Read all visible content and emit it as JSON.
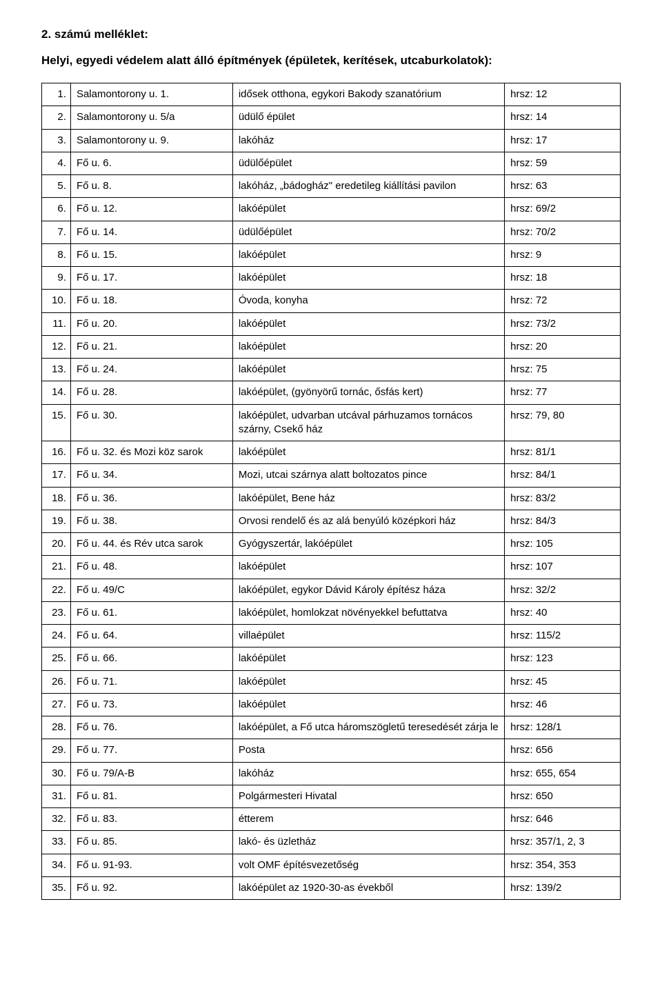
{
  "title": "2. számú melléklet:",
  "subtitle": "Helyi, egyedi védelem alatt álló építmények (épületek, kerítések, utcaburkolatok):",
  "table": {
    "rows": [
      {
        "n": "1.",
        "a": "Salamontorony u. 1.",
        "d": "idősek otthona, egykori Bakody szanatórium",
        "h": "hrsz: 12"
      },
      {
        "n": "2.",
        "a": "Salamontorony u. 5/a",
        "d": "üdülő épület",
        "h": "hrsz: 14"
      },
      {
        "n": "3.",
        "a": "Salamontorony u. 9.",
        "d": "lakóház",
        "h": "hrsz: 17"
      },
      {
        "n": "4.",
        "a": "Fő u. 6.",
        "d": "üdülőépület",
        "h": "hrsz: 59"
      },
      {
        "n": "5.",
        "a": "Fő u. 8.",
        "d": "lakóház, „bádogház\" eredetileg kiállítási pavilon",
        "h": "hrsz: 63"
      },
      {
        "n": "6.",
        "a": "Fő u. 12.",
        "d": "lakóépület",
        "h": "hrsz: 69/2"
      },
      {
        "n": "7.",
        "a": "Fő u. 14.",
        "d": "üdülőépület",
        "h": "hrsz: 70/2"
      },
      {
        "n": "8.",
        "a": "Fő u. 15.",
        "d": "lakóépület",
        "h": "hrsz: 9"
      },
      {
        "n": "9.",
        "a": "Fő u. 17.",
        "d": "lakóépület",
        "h": "hrsz: 18"
      },
      {
        "n": "10.",
        "a": "Fő u. 18.",
        "d": "Óvoda, konyha",
        "h": "hrsz: 72"
      },
      {
        "n": "11.",
        "a": "Fő u. 20.",
        "d": "lakóépület",
        "h": "hrsz: 73/2"
      },
      {
        "n": "12.",
        "a": "Fő u. 21.",
        "d": "lakóépület",
        "h": "hrsz: 20"
      },
      {
        "n": "13.",
        "a": "Fő u. 24.",
        "d": "lakóépület",
        "h": "hrsz: 75"
      },
      {
        "n": "14.",
        "a": "Fő u. 28.",
        "d": "lakóépület, (gyönyörű tornác, ősfás kert)",
        "h": "hrsz: 77"
      },
      {
        "n": "15.",
        "a": "Fő u. 30.",
        "d": "lakóépület, udvarban utcával párhuzamos tornácos szárny, Csekő ház",
        "h": "hrsz: 79, 80"
      },
      {
        "n": "16.",
        "a": "Fő u. 32. és Mozi köz sarok",
        "d": "lakóépület",
        "h": "hrsz: 81/1"
      },
      {
        "n": "17.",
        "a": "Fő u. 34.",
        "d": "Mozi, utcai szárnya alatt boltozatos pince",
        "h": "hrsz: 84/1"
      },
      {
        "n": "18.",
        "a": "Fő u. 36.",
        "d": "lakóépület, Bene ház",
        "h": "hrsz: 83/2"
      },
      {
        "n": "19.",
        "a": "Fő u. 38.",
        "d": "Orvosi rendelő és az alá benyúló középkori ház",
        "h": "hrsz: 84/3"
      },
      {
        "n": "20.",
        "a": "Fő u. 44. és Rév utca sarok",
        "d": "Gyógyszertár, lakóépület",
        "h": "hrsz: 105"
      },
      {
        "n": "21.",
        "a": "Fő u. 48.",
        "d": "lakóépület",
        "h": "hrsz: 107"
      },
      {
        "n": "22.",
        "a": "Fő u. 49/C",
        "d": "lakóépület, egykor Dávid Károly építész háza",
        "h": "hrsz: 32/2"
      },
      {
        "n": "23.",
        "a": "Fő u. 61.",
        "d": "lakóépület, homlokzat növényekkel befuttatva",
        "h": "hrsz: 40"
      },
      {
        "n": "24.",
        "a": "Fő u. 64.",
        "d": "villaépület",
        "h": "hrsz: 115/2"
      },
      {
        "n": "25.",
        "a": "Fő u. 66.",
        "d": "lakóépület",
        "h": "hrsz: 123"
      },
      {
        "n": "26.",
        "a": "Fő u. 71.",
        "d": "lakóépület",
        "h": "hrsz: 45"
      },
      {
        "n": "27.",
        "a": "Fő u. 73.",
        "d": "lakóépület",
        "h": "hrsz: 46"
      },
      {
        "n": "28.",
        "a": "Fő u. 76.",
        "d": "lakóépület, a Fő utca háromszögletű teresedését zárja le",
        "h": "hrsz: 128/1"
      },
      {
        "n": "29.",
        "a": "Fő u. 77.",
        "d": "Posta",
        "h": "hrsz: 656"
      },
      {
        "n": "30.",
        "a": "Fő u. 79/A-B",
        "d": "lakóház",
        "h": "hrsz: 655, 654"
      },
      {
        "n": "31.",
        "a": "Fő u. 81.",
        "d": "Polgármesteri Hivatal",
        "h": "hrsz: 650"
      },
      {
        "n": "32.",
        "a": "Fő u. 83.",
        "d": "étterem",
        "h": "hrsz: 646"
      },
      {
        "n": "33.",
        "a": "Fő u. 85.",
        "d": "lakó- és üzletház",
        "h": "hrsz: 357/1, 2, 3"
      },
      {
        "n": "34.",
        "a": "Fő u. 91-93.",
        "d": "volt OMF építésvezetőség",
        "h": "hrsz: 354, 353"
      },
      {
        "n": "35.",
        "a": "Fő u. 92.",
        "d": "lakóépület az 1920-30-as évekből",
        "h": "hrsz: 139/2"
      }
    ]
  }
}
